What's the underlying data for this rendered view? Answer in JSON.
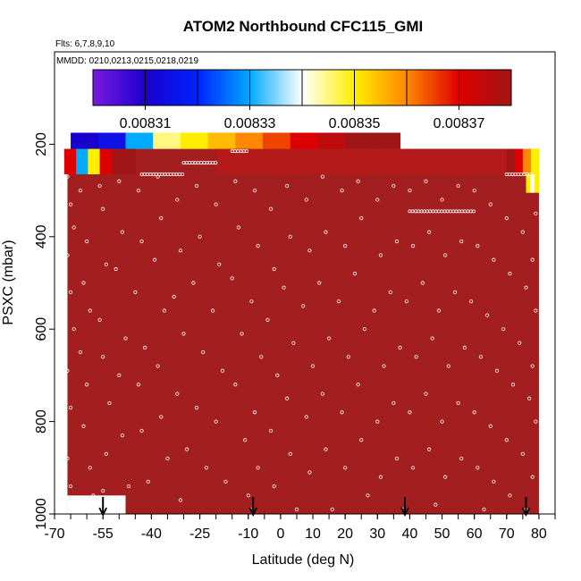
{
  "chart_data": {
    "type": "heatmap",
    "title": "ATOM2 Northbound CFC115_GMI",
    "subtitle_flights": "Flts: 6,7,8,9,10",
    "subtitle_dates": "MMDD: 0210,0213,0215,0218,0219",
    "xlabel": "Latitude (deg N)",
    "ylabel": "PSXC (mbar)",
    "xlim": [
      -70,
      85
    ],
    "ylim": [
      1000,
      0
    ],
    "x_ticks": [
      -70,
      -55,
      -40,
      -25,
      -10,
      0,
      10,
      20,
      30,
      40,
      50,
      60,
      70,
      80
    ],
    "x_tick_labels": [
      "-70",
      "-55",
      "-40",
      "-25",
      "-10",
      "0",
      "10",
      "20",
      "30",
      "40",
      "50",
      "60",
      "70",
      "80"
    ],
    "y_ticks": [
      200,
      400,
      600,
      800,
      1000
    ],
    "y_tick_labels": [
      "200",
      "400",
      "600",
      "800",
      "1000"
    ],
    "colorbar": {
      "min": 0.0083,
      "max": 0.00838,
      "tick_values": [
        0.00831,
        0.00833,
        0.00835,
        0.00837
      ],
      "tick_labels": [
        "0.00831",
        "0.00833",
        "0.00835",
        "0.00837"
      ],
      "colors": [
        "#7a1ae0",
        "#1a00cc",
        "#0022ff",
        "#00aaff",
        "#ffffff",
        "#ffee00",
        "#ff8800",
        "#dd0000",
        "#a01515"
      ]
    },
    "background_color": "#a31e1e",
    "blank_region": {
      "lat": [
        -66,
        -48
      ],
      "p": [
        960,
        1000
      ]
    },
    "upper_band": {
      "lat_start": -65,
      "lat_end": 37,
      "p_top": 175,
      "p_bottom": 210,
      "values": [
        0.00831,
        0.008315,
        0.00833,
        0.008345,
        0.00835,
        0.008355,
        0.00836,
        0.008365,
        0.00837,
        0.008375,
        0.00838,
        0.00838
      ]
    },
    "second_band": {
      "lat_start": -67,
      "lat_end": -45,
      "p_top": 210,
      "p_bottom": 265,
      "values": [
        0.00837,
        0.00833,
        0.00835,
        0.00837,
        0.00838,
        0.00838
      ]
    },
    "right_band": {
      "lat_start": 70,
      "lat_end": 80,
      "p_top": 210,
      "p_bottom": 265,
      "values": [
        0.00838,
        0.00837,
        0.00836,
        0.00835
      ]
    },
    "far_right_band": {
      "lat_start": 76,
      "lat_end": 80,
      "p_top": 265,
      "p_bottom": 305,
      "values": [
        0.00835,
        0.00834,
        0.00835
      ]
    },
    "red_strip": {
      "lat_start": -20,
      "lat_end": 70,
      "p_top": 210,
      "p_bottom": 265
    },
    "arrows_lat": [
      -55,
      -8.5,
      38.5,
      76
    ],
    "observation_lines": [
      {
        "p": 265,
        "lat_start": -43,
        "lat_end": -30
      },
      {
        "p": 240,
        "lat_start": -30,
        "lat_end": -20
      },
      {
        "p": 215,
        "lat_start": -15,
        "lat_end": -10
      },
      {
        "p": 345,
        "lat_start": 40,
        "lat_end": 60
      },
      {
        "p": 265,
        "lat_start": 70,
        "lat_end": 78
      }
    ],
    "points": [
      [
        -66,
        270
      ],
      [
        -65,
        330
      ],
      [
        -64,
        380
      ],
      [
        -66,
        440
      ],
      [
        -65,
        520
      ],
      [
        -64,
        600
      ],
      [
        -66,
        690
      ],
      [
        -65,
        770
      ],
      [
        -66,
        880
      ],
      [
        -65,
        940
      ],
      [
        -62,
        300
      ],
      [
        -60,
        410
      ],
      [
        -61,
        500
      ],
      [
        -59,
        560
      ],
      [
        -62,
        650
      ],
      [
        -60,
        720
      ],
      [
        -61,
        810
      ],
      [
        -59,
        900
      ],
      [
        -58,
        960
      ],
      [
        -56,
        290
      ],
      [
        -55,
        340
      ],
      [
        -54,
        460
      ],
      [
        -56,
        580
      ],
      [
        -55,
        660
      ],
      [
        -53,
        760
      ],
      [
        -54,
        870
      ],
      [
        -55,
        950
      ],
      [
        -50,
        280
      ],
      [
        -49,
        390
      ],
      [
        -51,
        470
      ],
      [
        -48,
        620
      ],
      [
        -50,
        700
      ],
      [
        -49,
        830
      ],
      [
        -47,
        940
      ],
      [
        -44,
        300
      ],
      [
        -43,
        410
      ],
      [
        -45,
        520
      ],
      [
        -42,
        640
      ],
      [
        -44,
        720
      ],
      [
        -43,
        820
      ],
      [
        -41,
        930
      ],
      [
        -38,
        270
      ],
      [
        -37,
        360
      ],
      [
        -39,
        450
      ],
      [
        -36,
        560
      ],
      [
        -38,
        680
      ],
      [
        -37,
        790
      ],
      [
        -35,
        880
      ],
      [
        -32,
        320
      ],
      [
        -31,
        430
      ],
      [
        -33,
        530
      ],
      [
        -30,
        610
      ],
      [
        -32,
        740
      ],
      [
        -29,
        860
      ],
      [
        -31,
        970
      ],
      [
        -26,
        290
      ],
      [
        -25,
        400
      ],
      [
        -27,
        500
      ],
      [
        -24,
        650
      ],
      [
        -26,
        770
      ],
      [
        -23,
        900
      ],
      [
        -20,
        330
      ],
      [
        -19,
        460
      ],
      [
        -21,
        560
      ],
      [
        -18,
        690
      ],
      [
        -20,
        800
      ],
      [
        -17,
        930
      ],
      [
        -14,
        280
      ],
      [
        -13,
        380
      ],
      [
        -15,
        490
      ],
      [
        -12,
        610
      ],
      [
        -14,
        720
      ],
      [
        -11,
        840
      ],
      [
        -10,
        960
      ],
      [
        -8,
        300
      ],
      [
        -7,
        420
      ],
      [
        -9,
        540
      ],
      [
        -6,
        660
      ],
      [
        -8,
        780
      ],
      [
        -7,
        900
      ],
      [
        -9,
        990
      ],
      [
        -3,
        340
      ],
      [
        -2,
        470
      ],
      [
        -4,
        580
      ],
      [
        -1,
        700
      ],
      [
        -3,
        820
      ],
      [
        -2,
        940
      ],
      [
        2,
        290
      ],
      [
        3,
        400
      ],
      [
        1,
        510
      ],
      [
        4,
        630
      ],
      [
        2,
        750
      ],
      [
        3,
        870
      ],
      [
        5,
        990
      ],
      [
        8,
        320
      ],
      [
        9,
        430
      ],
      [
        7,
        550
      ],
      [
        10,
        680
      ],
      [
        8,
        790
      ],
      [
        9,
        910
      ],
      [
        13,
        270
      ],
      [
        14,
        390
      ],
      [
        12,
        500
      ],
      [
        15,
        620
      ],
      [
        13,
        740
      ],
      [
        14,
        860
      ],
      [
        16,
        990
      ],
      [
        19,
        300
      ],
      [
        20,
        420
      ],
      [
        18,
        540
      ],
      [
        21,
        660
      ],
      [
        19,
        780
      ],
      [
        20,
        900
      ],
      [
        24,
        280
      ],
      [
        25,
        360
      ],
      [
        23,
        480
      ],
      [
        26,
        600
      ],
      [
        24,
        720
      ],
      [
        25,
        840
      ],
      [
        27,
        960
      ],
      [
        30,
        320
      ],
      [
        31,
        440
      ],
      [
        29,
        560
      ],
      [
        32,
        680
      ],
      [
        30,
        800
      ],
      [
        31,
        920
      ],
      [
        35,
        290
      ],
      [
        36,
        410
      ],
      [
        34,
        520
      ],
      [
        37,
        640
      ],
      [
        35,
        760
      ],
      [
        36,
        880
      ],
      [
        38,
        990
      ],
      [
        40,
        300
      ],
      [
        41,
        420
      ],
      [
        39,
        540
      ],
      [
        42,
        660
      ],
      [
        40,
        780
      ],
      [
        41,
        900
      ],
      [
        45,
        280
      ],
      [
        46,
        390
      ],
      [
        44,
        500
      ],
      [
        47,
        620
      ],
      [
        45,
        740
      ],
      [
        46,
        860
      ],
      [
        48,
        980
      ],
      [
        50,
        320
      ],
      [
        51,
        440
      ],
      [
        49,
        560
      ],
      [
        52,
        680
      ],
      [
        50,
        800
      ],
      [
        51,
        920
      ],
      [
        55,
        290
      ],
      [
        56,
        410
      ],
      [
        54,
        520
      ],
      [
        57,
        640
      ],
      [
        55,
        760
      ],
      [
        56,
        880
      ],
      [
        60,
        300
      ],
      [
        61,
        420
      ],
      [
        59,
        540
      ],
      [
        62,
        660
      ],
      [
        60,
        780
      ],
      [
        61,
        900
      ],
      [
        63,
        990
      ],
      [
        65,
        330
      ],
      [
        66,
        450
      ],
      [
        64,
        570
      ],
      [
        67,
        690
      ],
      [
        65,
        810
      ],
      [
        66,
        930
      ],
      [
        70,
        360
      ],
      [
        71,
        480
      ],
      [
        69,
        600
      ],
      [
        72,
        720
      ],
      [
        70,
        840
      ],
      [
        71,
        960
      ],
      [
        75,
        390
      ],
      [
        76,
        510
      ],
      [
        74,
        630
      ],
      [
        77,
        750
      ],
      [
        75,
        870
      ],
      [
        76,
        990
      ],
      [
        79,
        350
      ],
      [
        78,
        450
      ],
      [
        79,
        560
      ],
      [
        78,
        680
      ],
      [
        79,
        800
      ],
      [
        78,
        920
      ]
    ]
  }
}
